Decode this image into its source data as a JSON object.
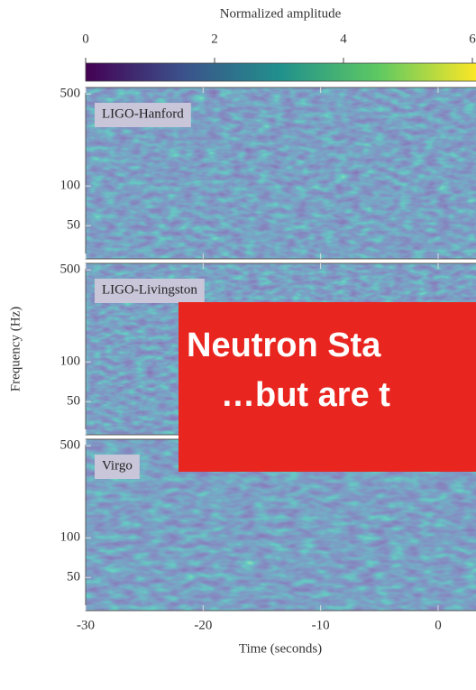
{
  "chart_data": {
    "type": "spectrogram",
    "colorbar": {
      "label": "Normalized amplitude",
      "lim": [
        0,
        6
      ],
      "ticks": [
        0,
        2,
        4,
        6
      ],
      "colormap": [
        "#440154",
        "#3b528b",
        "#21918c",
        "#5ec962",
        "#fde725"
      ]
    },
    "panels": [
      {
        "name": "LIGO-Hanford"
      },
      {
        "name": "LIGO-Livingston"
      },
      {
        "name": "Virgo"
      }
    ],
    "ylabel": "Frequency (Hz)",
    "ylim": [
      28,
      560
    ],
    "yticks": [
      50,
      100,
      500
    ],
    "ylog": true,
    "xlabel": "Time (seconds)",
    "xlim": [
      -30,
      3.3
    ],
    "xticks": [
      -30,
      -20,
      -10,
      0
    ],
    "annotation": {
      "lines": [
        "Neutron Sta",
        "…but are t"
      ],
      "color": "#e8251f"
    }
  }
}
